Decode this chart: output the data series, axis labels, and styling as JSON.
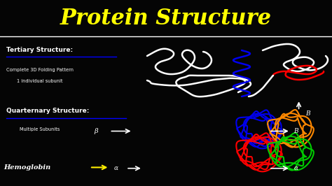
{
  "background_color": "#050505",
  "title": "Protein Structure",
  "title_color": "#ffff00",
  "title_fontsize": 22,
  "tertiary_label": "Tertiary Structure:",
  "tertiary_sub1": "Complete 3D Folding Pattern",
  "tertiary_sub2": "1 individual subunit",
  "underline_color": "#0000ff",
  "quarternary_label": "Quarternary Structure:",
  "quarternary_sub": "Multiple Subunits",
  "hemoglobin_label": "Hemoglobin",
  "white_color": "#ffffff",
  "blue_color": "#0000ee",
  "red_color": "#ff0000",
  "green_color": "#00cc00",
  "orange_color": "#ff8800",
  "yellow_color": "#ffee00"
}
